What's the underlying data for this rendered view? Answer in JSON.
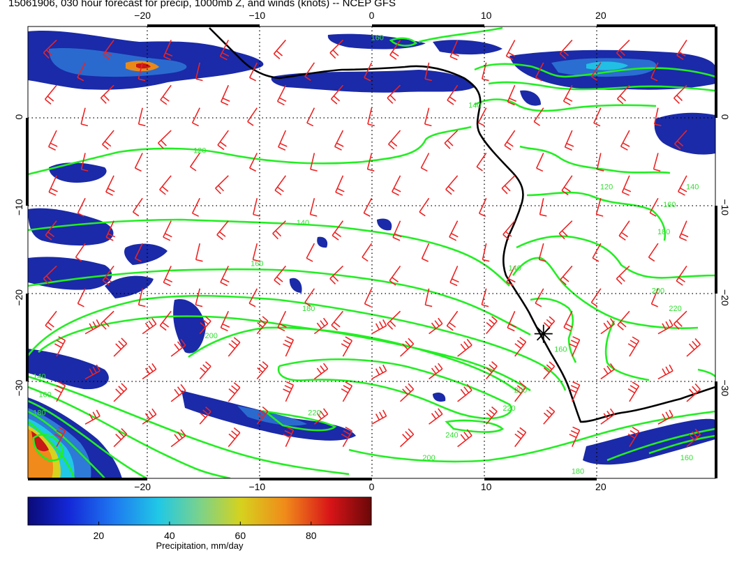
{
  "title": "15061906, 030 hour forecast for precip, 1000mb Z, and winds (knots) -- NCEP GFS",
  "map": {
    "lon_range": [
      -30,
      30
    ],
    "lat_range": [
      -40,
      10
    ],
    "lon_ticks": [
      {
        "value": -20,
        "label": "−20"
      },
      {
        "value": -10,
        "label": "−10"
      },
      {
        "value": 0,
        "label": "0"
      },
      {
        "value": 10,
        "label": "10"
      },
      {
        "value": 20,
        "label": "20"
      }
    ],
    "lat_ticks": [
      {
        "value": 0,
        "label": "0"
      },
      {
        "value": -10,
        "label": "−10"
      },
      {
        "value": -20,
        "label": "−20"
      },
      {
        "value": -30,
        "label": "−30"
      }
    ],
    "grid": true,
    "colors": {
      "coast": "#000000",
      "contour": "#22ee22",
      "wind_barb": "#ee2222",
      "grid": "#000000"
    },
    "contour_labels": [
      {
        "label": "120",
        "lon": -15,
        "lat": -4
      },
      {
        "label": "140",
        "lon": -6,
        "lat": -12
      },
      {
        "label": "160",
        "lon": -10,
        "lat": -16.5
      },
      {
        "label": "180",
        "lon": -5.5,
        "lat": -21.5
      },
      {
        "label": "200",
        "lon": -14,
        "lat": -24.5
      },
      {
        "label": "220",
        "lon": -5,
        "lat": -33
      },
      {
        "label": "240",
        "lon": 7,
        "lat": -35.5
      },
      {
        "label": "220",
        "lon": 12,
        "lat": -32.5
      },
      {
        "label": "200",
        "lon": 5,
        "lat": -38
      },
      {
        "label": "200",
        "lon": 13,
        "lat": -30.5
      },
      {
        "label": "160",
        "lon": 0.5,
        "lat": 8.5
      },
      {
        "label": "140",
        "lon": 9,
        "lat": 1
      },
      {
        "label": "120",
        "lon": 20.5,
        "lat": -8
      },
      {
        "label": "140",
        "lon": 28,
        "lat": -8
      },
      {
        "label": "160",
        "lon": 26,
        "lat": -10
      },
      {
        "label": "180",
        "lon": 25.5,
        "lat": -13
      },
      {
        "label": "140",
        "lon": 12.5,
        "lat": -17
      },
      {
        "label": "160",
        "lon": 16.5,
        "lat": -26
      },
      {
        "label": "200",
        "lon": 25,
        "lat": -19.5
      },
      {
        "label": "220",
        "lon": 26.5,
        "lat": -21.5
      },
      {
        "label": "140",
        "lon": -29,
        "lat": -29
      },
      {
        "label": "160",
        "lon": -28.5,
        "lat": -31
      },
      {
        "label": "180",
        "lon": -29,
        "lat": -33
      },
      {
        "label": "160",
        "lon": 27.5,
        "lat": -38
      },
      {
        "label": "180",
        "lon": 18,
        "lat": -39.5
      }
    ],
    "marker": {
      "lon": 15,
      "lat": -24
    }
  },
  "colorbar": {
    "label": "Precipitation, mm/day",
    "min": 0,
    "max": 97,
    "ticks": [
      {
        "value": 20,
        "label": "20"
      },
      {
        "value": 40,
        "label": "40"
      },
      {
        "value": 60,
        "label": "60"
      },
      {
        "value": 80,
        "label": "80"
      }
    ]
  }
}
